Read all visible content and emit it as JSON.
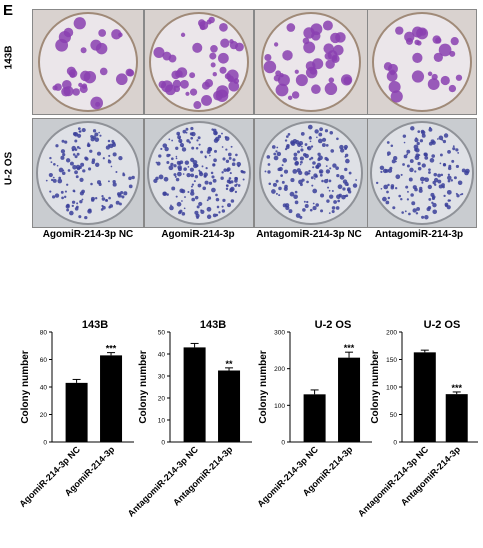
{
  "panel_label": "E",
  "row_labels": [
    "143B",
    "U-2 OS"
  ],
  "column_labels": [
    "AgomiR-214-3p NC",
    "AgomiR-214-3p",
    "AntagomiR-214-3p NC",
    "AntagomiR-214-3p"
  ],
  "colors": {
    "bar": "#000000",
    "plate_143b_bg": "#d9d2cf",
    "plate_u2os_bg": "#c9ccd0",
    "colony_143b": "#8a3fb0",
    "colony_u2os": "#3b3f9a"
  },
  "chart_data": [
    {
      "type": "bar",
      "title": "143B",
      "ylabel": "Colony number",
      "categories": [
        "AgomiR-214-3p NC",
        "AgomiR-214-3p"
      ],
      "values": [
        43,
        63
      ],
      "errors": [
        2.5,
        2.0
      ],
      "significance": [
        "",
        "***"
      ],
      "ylim": [
        0,
        80
      ],
      "yticks": [
        "0",
        "20",
        "40",
        "60",
        "80"
      ]
    },
    {
      "type": "bar",
      "title": "143B",
      "ylabel": "Colony number",
      "categories": [
        "AntagomiR-214-3p NC",
        "AntagomiR-214-3p"
      ],
      "values": [
        43,
        32.5
      ],
      "errors": [
        1.8,
        1.2
      ],
      "significance": [
        "",
        "**"
      ],
      "ylim": [
        0,
        50
      ],
      "yticks": [
        "0",
        "10",
        "20",
        "30",
        "40",
        "50"
      ]
    },
    {
      "type": "bar",
      "title": "U-2  OS",
      "ylabel": "Colony number",
      "categories": [
        "AgomiR-214-3p NC",
        "AgomiR-214-3p"
      ],
      "values": [
        130,
        230
      ],
      "errors": [
        12,
        15
      ],
      "significance": [
        "",
        "***"
      ],
      "ylim": [
        0,
        300
      ],
      "yticks": [
        "0",
        "100",
        "200",
        "300"
      ]
    },
    {
      "type": "bar",
      "title": "U-2  OS",
      "ylabel": "Colony number",
      "categories": [
        "AntagomiR-214-3p NC",
        "AntagomiR-214-3p"
      ],
      "values": [
        163,
        87
      ],
      "errors": [
        4,
        4
      ],
      "significance": [
        "",
        "***"
      ],
      "ylim": [
        0,
        200
      ],
      "yticks": [
        "0",
        "50",
        "100",
        "150",
        "200"
      ]
    }
  ]
}
